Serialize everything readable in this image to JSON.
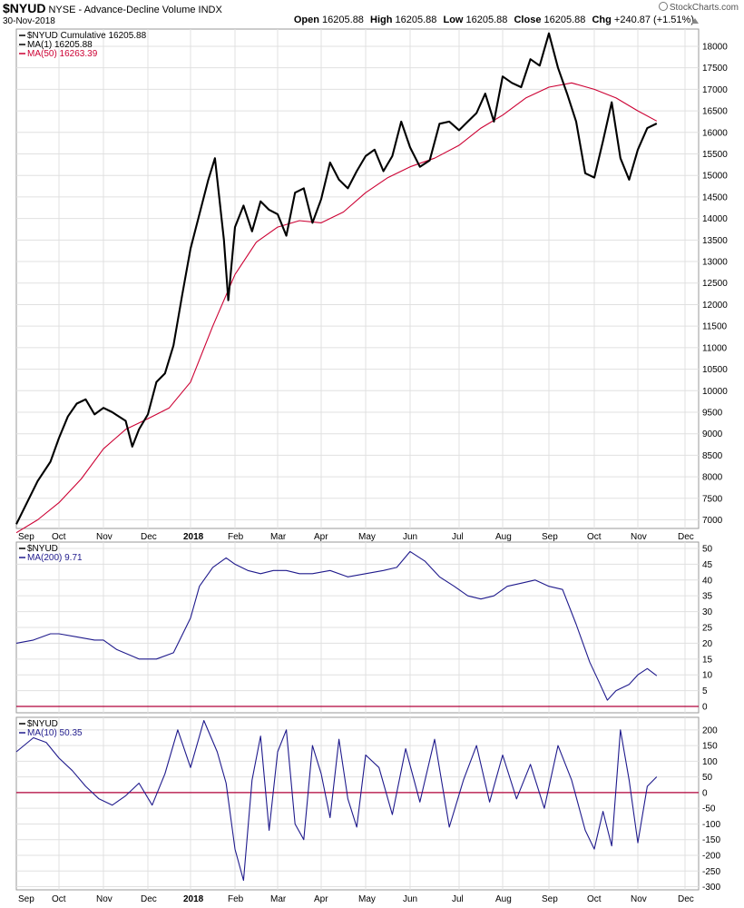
{
  "header": {
    "symbol": "$NYUD",
    "description": "NYSE - Advance-Decline Volume INDX",
    "date": "30-Nov-2018",
    "brand": "StockCharts.com",
    "open_label": "Open",
    "open": "16205.88",
    "high_label": "High",
    "high": "16205.88",
    "low_label": "Low",
    "low": "16205.88",
    "close_label": "Close",
    "close": "16205.88",
    "chg_label": "Chg",
    "chg": "+240.87 (+1.51%)",
    "chg_direction": "up"
  },
  "colors": {
    "price": "#000000",
    "ma50": "#cc0033",
    "indicator": "#1f1a8c",
    "zero_line": "#b0003a",
    "grid": "#e0e0e0"
  },
  "chart_data": [
    {
      "type": "line",
      "panel": "price",
      "x_tick_labels": [
        "Sep",
        "Oct",
        "Nov",
        "Dec",
        "2018",
        "Feb",
        "Mar",
        "Apr",
        "May",
        "Jun",
        "Jul",
        "Aug",
        "Sep",
        "Oct",
        "Nov",
        "Dec"
      ],
      "y_ticks": [
        7000,
        7500,
        8000,
        8500,
        9000,
        9500,
        10000,
        10500,
        11000,
        11500,
        12000,
        12500,
        13000,
        13500,
        14000,
        14500,
        15000,
        15500,
        16000,
        16500,
        17000,
        17500,
        18000
      ],
      "ylim": [
        6800,
        18400
      ],
      "legend": [
        {
          "label": "$NYUD Cumulative 16205.88",
          "color": "#000000"
        },
        {
          "label": "MA(1) 16205.88",
          "color": "#000000"
        },
        {
          "label": "MA(50) 16263.39",
          "color": "#cc0033"
        }
      ],
      "series": [
        {
          "name": "$NYUD Cumulative",
          "color": "#000000",
          "points": [
            [
              0,
              6900
            ],
            [
              0.2,
              7300
            ],
            [
              0.5,
              7900
            ],
            [
              0.8,
              8350
            ],
            [
              1.0,
              8900
            ],
            [
              1.2,
              9400
            ],
            [
              1.4,
              9700
            ],
            [
              1.6,
              9800
            ],
            [
              1.8,
              9450
            ],
            [
              2.0,
              9600
            ],
            [
              2.2,
              9500
            ],
            [
              2.5,
              9300
            ],
            [
              2.65,
              8700
            ],
            [
              2.8,
              9100
            ],
            [
              3.0,
              9450
            ],
            [
              3.2,
              10200
            ],
            [
              3.4,
              10400
            ],
            [
              3.6,
              11050
            ],
            [
              3.8,
              12200
            ],
            [
              4.0,
              13300
            ],
            [
              4.2,
              14100
            ],
            [
              4.4,
              14900
            ],
            [
              4.55,
              15400
            ],
            [
              4.75,
              13500
            ],
            [
              4.85,
              12100
            ],
            [
              5.0,
              13800
            ],
            [
              5.2,
              14300
            ],
            [
              5.4,
              13700
            ],
            [
              5.6,
              14400
            ],
            [
              5.8,
              14200
            ],
            [
              6.0,
              14100
            ],
            [
              6.2,
              13600
            ],
            [
              6.4,
              14600
            ],
            [
              6.6,
              14700
            ],
            [
              6.8,
              13900
            ],
            [
              7.0,
              14450
            ],
            [
              7.2,
              15300
            ],
            [
              7.4,
              14900
            ],
            [
              7.6,
              14700
            ],
            [
              7.8,
              15100
            ],
            [
              8.0,
              15450
            ],
            [
              8.2,
              15600
            ],
            [
              8.4,
              15100
            ],
            [
              8.6,
              15450
            ],
            [
              8.8,
              16250
            ],
            [
              9.0,
              15650
            ],
            [
              9.2,
              15200
            ],
            [
              9.4,
              15350
            ],
            [
              9.6,
              16200
            ],
            [
              9.8,
              16250
            ],
            [
              10.0,
              16050
            ],
            [
              10.2,
              16250
            ],
            [
              10.4,
              16450
            ],
            [
              10.6,
              16900
            ],
            [
              10.8,
              16250
            ],
            [
              11.0,
              17300
            ],
            [
              11.2,
              17150
            ],
            [
              11.4,
              17050
            ],
            [
              11.6,
              17700
            ],
            [
              11.8,
              17550
            ],
            [
              12.0,
              18300
            ],
            [
              12.2,
              17500
            ],
            [
              12.4,
              16900
            ],
            [
              12.6,
              16250
            ],
            [
              12.8,
              15050
            ],
            [
              13.0,
              14950
            ],
            [
              13.2,
              15800
            ],
            [
              13.4,
              16700
            ],
            [
              13.6,
              15400
            ],
            [
              13.8,
              14900
            ],
            [
              14.0,
              15600
            ],
            [
              14.2,
              16100
            ],
            [
              14.4,
              16205.88
            ]
          ]
        },
        {
          "name": "MA(50)",
          "color": "#cc0033",
          "points": [
            [
              0,
              6700
            ],
            [
              0.5,
              7000
            ],
            [
              1.0,
              7400
            ],
            [
              1.5,
              7950
            ],
            [
              2.0,
              8650
            ],
            [
              2.5,
              9100
            ],
            [
              3.0,
              9350
            ],
            [
              3.5,
              9600
            ],
            [
              4.0,
              10200
            ],
            [
              4.5,
              11500
            ],
            [
              5.0,
              12700
            ],
            [
              5.5,
              13450
            ],
            [
              6.0,
              13800
            ],
            [
              6.5,
              13950
            ],
            [
              7.0,
              13900
            ],
            [
              7.5,
              14150
            ],
            [
              8.0,
              14600
            ],
            [
              8.5,
              14950
            ],
            [
              9.0,
              15200
            ],
            [
              9.5,
              15400
            ],
            [
              10.0,
              15700
            ],
            [
              10.5,
              16100
            ],
            [
              11.0,
              16400
            ],
            [
              11.5,
              16800
            ],
            [
              12.0,
              17050
            ],
            [
              12.5,
              17150
            ],
            [
              13.0,
              17000
            ],
            [
              13.5,
              16800
            ],
            [
              14.0,
              16500
            ],
            [
              14.4,
              16263.39
            ]
          ]
        }
      ]
    },
    {
      "type": "line",
      "panel": "indicator-1",
      "legend": [
        {
          "label": "$NYUD",
          "color": "#000000"
        },
        {
          "label": "MA(200) 9.71",
          "color": "#1f1a8c"
        }
      ],
      "y_ticks": [
        0,
        5,
        10,
        15,
        20,
        25,
        30,
        35,
        40,
        45,
        50
      ],
      "ylim": [
        -2,
        52
      ],
      "zero_line": 0,
      "series": [
        {
          "name": "MA(200)",
          "color": "#1f1a8c",
          "points": [
            [
              0,
              20
            ],
            [
              0.4,
              21
            ],
            [
              0.8,
              23
            ],
            [
              1.0,
              23
            ],
            [
              1.4,
              22
            ],
            [
              1.8,
              21
            ],
            [
              2.0,
              21
            ],
            [
              2.3,
              18
            ],
            [
              2.8,
              15
            ],
            [
              3.2,
              15
            ],
            [
              3.6,
              17
            ],
            [
              4.0,
              28
            ],
            [
              4.2,
              38
            ],
            [
              4.5,
              44
            ],
            [
              4.8,
              47
            ],
            [
              5.0,
              45
            ],
            [
              5.3,
              43
            ],
            [
              5.6,
              42
            ],
            [
              5.9,
              43
            ],
            [
              6.2,
              43
            ],
            [
              6.5,
              42
            ],
            [
              6.8,
              42
            ],
            [
              7.2,
              43
            ],
            [
              7.6,
              41
            ],
            [
              8.0,
              42
            ],
            [
              8.4,
              43
            ],
            [
              8.7,
              44
            ],
            [
              9.0,
              49
            ],
            [
              9.3,
              46
            ],
            [
              9.6,
              41
            ],
            [
              9.9,
              38
            ],
            [
              10.2,
              35
            ],
            [
              10.5,
              34
            ],
            [
              10.8,
              35
            ],
            [
              11.1,
              38
            ],
            [
              11.4,
              39
            ],
            [
              11.7,
              40
            ],
            [
              12.0,
              38
            ],
            [
              12.3,
              37
            ],
            [
              12.6,
              26
            ],
            [
              12.9,
              14
            ],
            [
              13.1,
              8
            ],
            [
              13.3,
              2
            ],
            [
              13.5,
              5
            ],
            [
              13.8,
              7
            ],
            [
              14.0,
              10
            ],
            [
              14.2,
              12
            ],
            [
              14.4,
              9.71
            ]
          ]
        }
      ]
    },
    {
      "type": "line",
      "panel": "indicator-2",
      "legend": [
        {
          "label": "$NYUD",
          "color": "#000000"
        },
        {
          "label": "MA(10) 50.35",
          "color": "#1f1a8c"
        }
      ],
      "y_ticks": [
        -300,
        -250,
        -200,
        -150,
        -100,
        -50,
        0,
        50,
        100,
        150,
        200
      ],
      "ylim": [
        -310,
        240
      ],
      "zero_line": 0,
      "series": [
        {
          "name": "MA(10)",
          "color": "#1f1a8c",
          "points": [
            [
              0,
              130
            ],
            [
              0.4,
              175
            ],
            [
              0.7,
              160
            ],
            [
              1.0,
              110
            ],
            [
              1.3,
              70
            ],
            [
              1.6,
              20
            ],
            [
              1.9,
              -20
            ],
            [
              2.2,
              -40
            ],
            [
              2.5,
              -10
            ],
            [
              2.8,
              30
            ],
            [
              3.1,
              -40
            ],
            [
              3.4,
              60
            ],
            [
              3.7,
              200
            ],
            [
              4.0,
              80
            ],
            [
              4.3,
              230
            ],
            [
              4.6,
              130
            ],
            [
              4.8,
              30
            ],
            [
              5.0,
              -180
            ],
            [
              5.2,
              -280
            ],
            [
              5.4,
              40
            ],
            [
              5.6,
              180
            ],
            [
              5.8,
              -120
            ],
            [
              6.0,
              130
            ],
            [
              6.2,
              200
            ],
            [
              6.4,
              -100
            ],
            [
              6.6,
              -150
            ],
            [
              6.8,
              150
            ],
            [
              7.0,
              60
            ],
            [
              7.2,
              -80
            ],
            [
              7.4,
              170
            ],
            [
              7.6,
              -20
            ],
            [
              7.8,
              -110
            ],
            [
              8.0,
              120
            ],
            [
              8.3,
              80
            ],
            [
              8.6,
              -70
            ],
            [
              8.9,
              140
            ],
            [
              9.2,
              -30
            ],
            [
              9.5,
              170
            ],
            [
              9.8,
              -110
            ],
            [
              10.1,
              40
            ],
            [
              10.4,
              150
            ],
            [
              10.7,
              -30
            ],
            [
              11.0,
              120
            ],
            [
              11.3,
              -20
            ],
            [
              11.6,
              90
            ],
            [
              11.9,
              -50
            ],
            [
              12.2,
              150
            ],
            [
              12.5,
              40
            ],
            [
              12.8,
              -120
            ],
            [
              13.0,
              -180
            ],
            [
              13.2,
              -60
            ],
            [
              13.4,
              -170
            ],
            [
              13.6,
              200
            ],
            [
              13.8,
              40
            ],
            [
              14.0,
              -160
            ],
            [
              14.2,
              20
            ],
            [
              14.4,
              50.35
            ]
          ]
        }
      ]
    }
  ]
}
